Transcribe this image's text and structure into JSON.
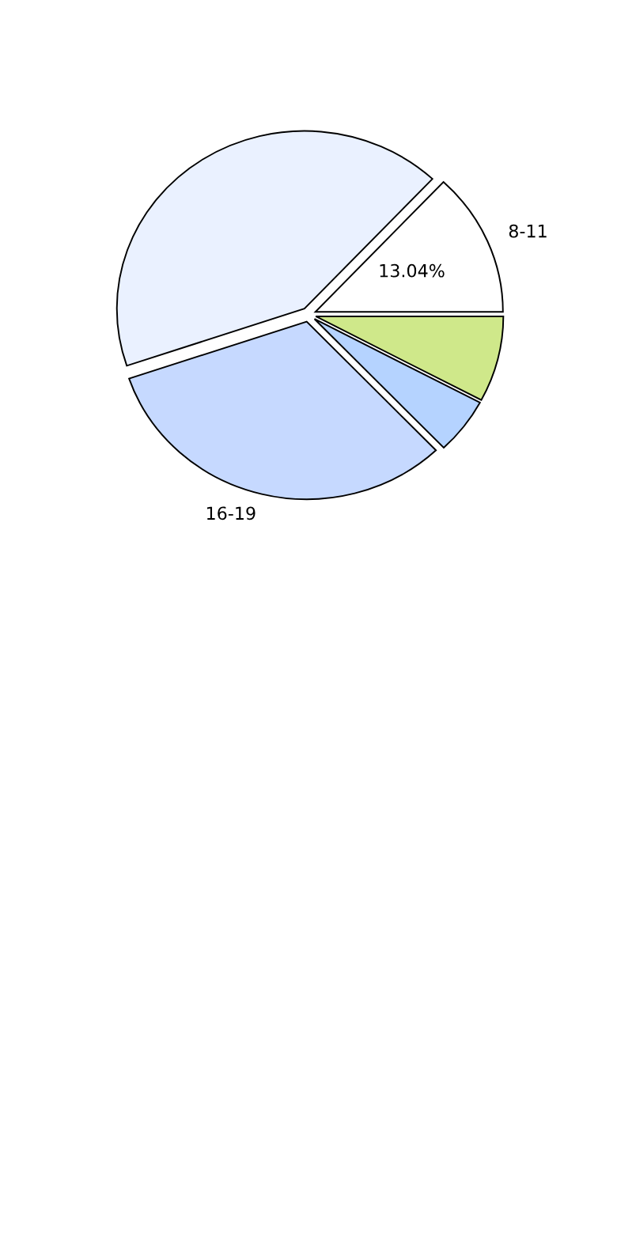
{
  "chart_data": {
    "type": "pie",
    "categories": [
      "8-11",
      null,
      "16-19",
      null,
      null
    ],
    "values": [
      13.04,
      42.16,
      31.9,
      5.1,
      7.8
    ],
    "colors": [
      "#ffffff",
      "#eaf1ff",
      "#c6d9ff",
      "#b5d3ff",
      "#cfe88a"
    ],
    "value_labels": [
      "13.04%",
      null,
      null,
      null,
      null
    ],
    "legend": false
  }
}
